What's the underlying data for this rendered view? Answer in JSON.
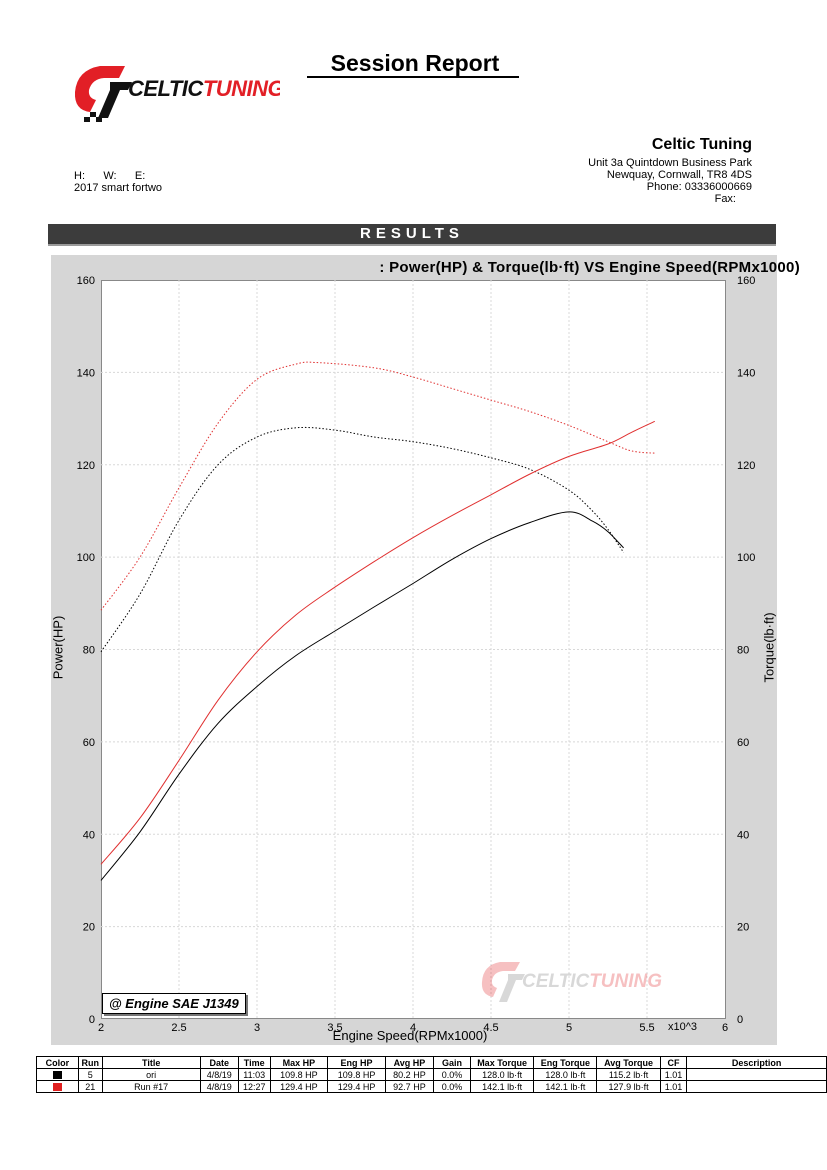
{
  "header": {
    "title": "Session Report",
    "logo_text": "CELTICTUNING",
    "company": {
      "name": "Celtic Tuning",
      "address1": "Unit 3a Quintdown Business Park",
      "address2": "Newquay, Cornwall, TR8 4DS",
      "phone": "Phone: 03336000669",
      "fax": "Fax:"
    },
    "hwe": "H:      W:      E:",
    "vehicle": "2017 smart fortwo"
  },
  "results_label": "RESULTS",
  "chart_data": {
    "type": "line",
    "title": ": Power(HP) & Torque(lb·ft) VS Engine Speed(RPMx1000)",
    "xlabel": "Engine Speed(RPMx1000)",
    "x_multiplier_label": "x10^3",
    "ylabel_left": "Power(HP)",
    "ylabel_right": "Torque(lb·ft)",
    "xlim": [
      2,
      6
    ],
    "ylim_left": [
      0,
      160
    ],
    "ylim_right": [
      0,
      160
    ],
    "x_ticks": [
      "2",
      "2.5",
      "3",
      "3.5",
      "4",
      "4.5",
      "5",
      "5.5",
      "6"
    ],
    "y_ticks": [
      "0",
      "20",
      "40",
      "60",
      "80",
      "100",
      "120",
      "140",
      "160"
    ],
    "grid": true,
    "correction_label": "@ Engine SAE J1349",
    "series": [
      {
        "run": "5",
        "measure": "power",
        "color": "#000000",
        "style": "solid",
        "x": [
          2.0,
          2.25,
          2.5,
          2.75,
          3.0,
          3.25,
          3.5,
          3.75,
          4.0,
          4.25,
          4.5,
          4.75,
          5.0,
          5.15,
          5.25,
          5.35
        ],
        "y": [
          30.0,
          40.5,
          53.0,
          64.0,
          72.0,
          78.7,
          84.0,
          89.2,
          94.3,
          99.5,
          104.0,
          107.5,
          109.8,
          107.8,
          105.5,
          102.0
        ]
      },
      {
        "run": "5",
        "measure": "torque",
        "color": "#000000",
        "style": "dotted",
        "x": [
          2.0,
          2.25,
          2.5,
          2.75,
          3.0,
          3.25,
          3.5,
          3.75,
          4.0,
          4.25,
          4.5,
          4.75,
          5.0,
          5.15,
          5.25,
          5.35
        ],
        "y": [
          79.5,
          92.0,
          108.0,
          120.0,
          126.0,
          128.0,
          127.5,
          126.0,
          125.0,
          123.5,
          121.5,
          119.0,
          114.5,
          110.0,
          106.0,
          101.0
        ]
      },
      {
        "run": "21",
        "measure": "power",
        "color": "#e03030",
        "style": "solid",
        "x": [
          2.0,
          2.25,
          2.5,
          2.75,
          3.0,
          3.25,
          3.5,
          3.75,
          4.0,
          4.25,
          4.5,
          4.75,
          5.0,
          5.25,
          5.4,
          5.55
        ],
        "y": [
          33.5,
          43.5,
          56.0,
          69.0,
          79.5,
          87.5,
          93.5,
          99.0,
          104.2,
          109.0,
          113.5,
          118.0,
          121.8,
          124.5,
          127.0,
          129.4
        ]
      },
      {
        "run": "21",
        "measure": "torque",
        "color": "#e03030",
        "style": "dotted",
        "x": [
          2.0,
          2.25,
          2.5,
          2.75,
          3.0,
          3.25,
          3.4,
          3.75,
          4.0,
          4.25,
          4.5,
          4.75,
          5.0,
          5.25,
          5.4,
          5.55
        ],
        "y": [
          88.5,
          100.0,
          115.0,
          129.0,
          138.5,
          141.8,
          142.1,
          141.0,
          139.0,
          136.5,
          134.0,
          131.5,
          128.5,
          125.0,
          123.0,
          122.5
        ]
      }
    ]
  },
  "table": {
    "headers": [
      "Color",
      "Run",
      "Title",
      "Date",
      "Time",
      "Max HP",
      "Eng HP",
      "Avg HP",
      "Gain",
      "Max Torque",
      "Eng Torque",
      "Avg Torque",
      "CF",
      "Description"
    ],
    "rows": [
      {
        "color": "#000000",
        "cells": [
          "5",
          "ori",
          "4/8/19",
          "11:03",
          "109.8 HP",
          "109.8 HP",
          "80.2 HP",
          "0.0%",
          "128.0 lb·ft",
          "128.0 lb·ft",
          "115.2 lb·ft",
          "1.01",
          ""
        ]
      },
      {
        "color": "#e02020",
        "cells": [
          "21",
          "Run #17",
          "4/8/19",
          "12:27",
          "129.4 HP",
          "129.4 HP",
          "92.7 HP",
          "0.0%",
          "142.1 lb·ft",
          "142.1 lb·ft",
          "127.9 lb·ft",
          "1.01",
          ""
        ]
      }
    ]
  }
}
